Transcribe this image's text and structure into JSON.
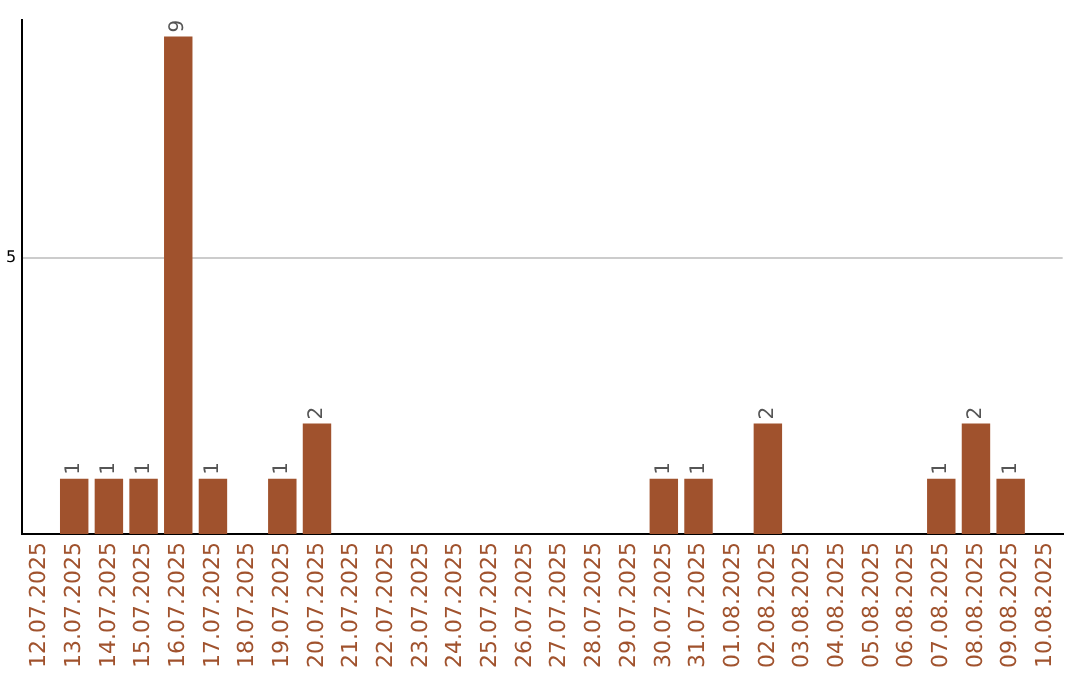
{
  "chart_data": {
    "type": "bar",
    "categories": [
      "12.07.2025",
      "13.07.2025",
      "14.07.2025",
      "15.07.2025",
      "16.07.2025",
      "17.07.2025",
      "18.07.2025",
      "19.07.2025",
      "20.07.2025",
      "21.07.2025",
      "22.07.2025",
      "23.07.2025",
      "24.07.2025",
      "25.07.2025",
      "26.07.2025",
      "27.07.2025",
      "28.07.2025",
      "29.07.2025",
      "30.07.2025",
      "31.07.2025",
      "01.08.2025",
      "02.08.2025",
      "03.08.2025",
      "04.08.2025",
      "05.08.2025",
      "06.08.2025",
      "07.08.2025",
      "08.08.2025",
      "09.08.2025",
      "10.08.2025"
    ],
    "values": [
      0,
      1,
      1,
      1,
      9,
      1,
      0,
      1,
      2,
      0,
      0,
      0,
      0,
      0,
      0,
      0,
      0,
      0,
      1,
      1,
      0,
      2,
      0,
      0,
      0,
      0,
      1,
      2,
      1,
      0
    ],
    "value_labels": [
      null,
      "1",
      "1",
      "1",
      "9",
      "1",
      null,
      "1",
      "2",
      null,
      null,
      null,
      null,
      null,
      null,
      null,
      null,
      null,
      "1",
      "1",
      null,
      "2",
      null,
      null,
      null,
      null,
      "1",
      "2",
      "1",
      null
    ],
    "color": "#a0522d",
    "ylim": [
      0,
      9.3
    ],
    "yticks": [
      5
    ],
    "grid": "y",
    "legend": false
  }
}
